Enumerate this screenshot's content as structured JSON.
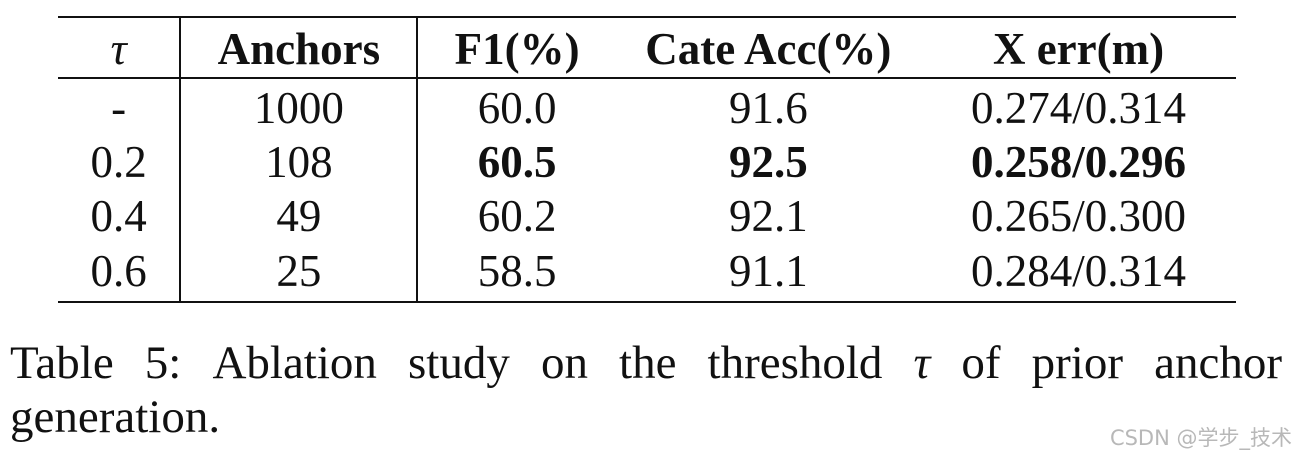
{
  "table": {
    "headers": {
      "tau": "τ",
      "anchors": "Anchors",
      "f1": "F1(%)",
      "cate_acc": "Cate Acc(%)",
      "x_err": "X err(m)"
    },
    "rows": [
      {
        "tau": "-",
        "anchors": "1000",
        "f1": "60.0",
        "cate_acc": "91.6",
        "x_err": "0.274/0.314"
      },
      {
        "tau": "0.2",
        "anchors": "108",
        "f1": "60.5",
        "cate_acc": "92.5",
        "x_err": "0.258/0.296"
      },
      {
        "tau": "0.4",
        "anchors": "49",
        "f1": "60.2",
        "cate_acc": "92.1",
        "x_err": "0.265/0.300"
      },
      {
        "tau": "0.6",
        "anchors": "25",
        "f1": "58.5",
        "cate_acc": "91.1",
        "x_err": "0.284/0.314"
      }
    ],
    "best_row_index": 1
  },
  "caption": {
    "words_line1": [
      "Table",
      "5:",
      "Ablation",
      "study",
      "on",
      "the",
      "threshold",
      "τ",
      "of",
      "prior",
      "anchor"
    ],
    "line2": "generation."
  },
  "watermark": "CSDN @学步_技术"
}
